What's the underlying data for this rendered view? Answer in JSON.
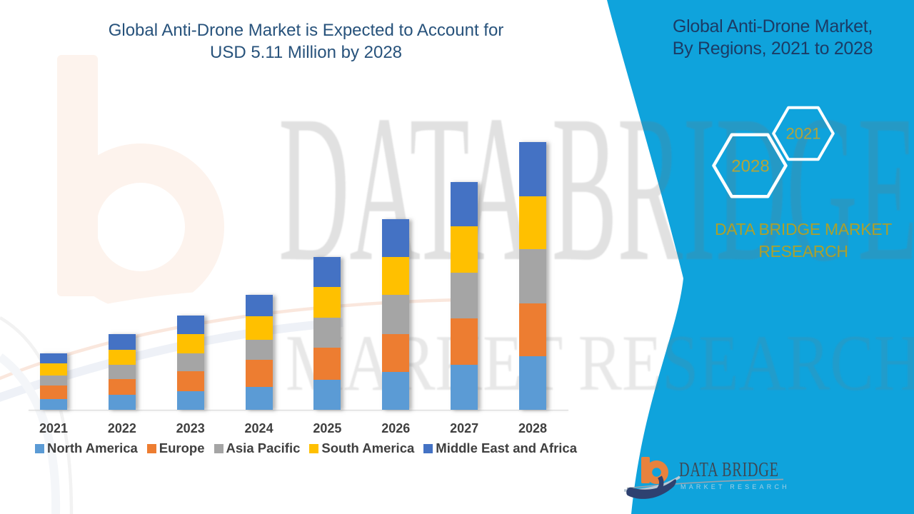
{
  "title": {
    "line1": "Global Anti-Drone Market is Expected to Account for",
    "line2": "USD 5.11 Million by 2028"
  },
  "right_panel": {
    "heading_line1": "Global Anti-Drone Market,",
    "heading_line2": "By Regions, 2021 to 2028",
    "hexagons": [
      {
        "label": "2028"
      },
      {
        "label": "2021"
      }
    ],
    "brand_line1": "DATA BRIDGE MARKET",
    "brand_line2": "RESEARCH",
    "panel_color": "#0FA3DC",
    "heading_color": "#1B3C66",
    "year_color": "#B2A43A"
  },
  "watermark": {
    "line1": "DATA BRIDGE",
    "line2": "MARKET RESEARCH"
  },
  "footer_logo": {
    "name": "DATA BRIDGE",
    "subtitle": "MARKET RESEARCH"
  },
  "chart_data": {
    "type": "bar",
    "stacked": true,
    "title": "Global Anti-Drone Market is Expected to Account for USD 5.11 Million by 2028",
    "unit": "USD Million",
    "categories": [
      "2021",
      "2022",
      "2023",
      "2024",
      "2025",
      "2026",
      "2027",
      "2028"
    ],
    "series": [
      {
        "name": "North America",
        "color": "#5B9BD5",
        "values": [
          0.2,
          0.28,
          0.35,
          0.44,
          0.57,
          0.72,
          0.86,
          1.02
        ]
      },
      {
        "name": "Europe",
        "color": "#ED7D31",
        "values": [
          0.26,
          0.31,
          0.39,
          0.51,
          0.61,
          0.73,
          0.88,
          1.01
        ]
      },
      {
        "name": "Asia Pacific",
        "color": "#A5A5A5",
        "values": [
          0.2,
          0.27,
          0.33,
          0.38,
          0.58,
          0.75,
          0.87,
          1.03
        ]
      },
      {
        "name": "South America",
        "color": "#FFC000",
        "values": [
          0.22,
          0.29,
          0.38,
          0.45,
          0.59,
          0.72,
          0.89,
          1.01
        ]
      },
      {
        "name": "Middle East and Africa",
        "color": "#4472C4",
        "values": [
          0.2,
          0.29,
          0.35,
          0.41,
          0.57,
          0.72,
          0.85,
          1.04
        ]
      }
    ],
    "totals": [
      1.08,
      1.44,
      1.8,
      2.19,
      2.92,
      3.64,
      4.35,
      5.11
    ],
    "ylim": [
      0,
      5.5
    ],
    "grid": false,
    "legend_position": "bottom"
  }
}
